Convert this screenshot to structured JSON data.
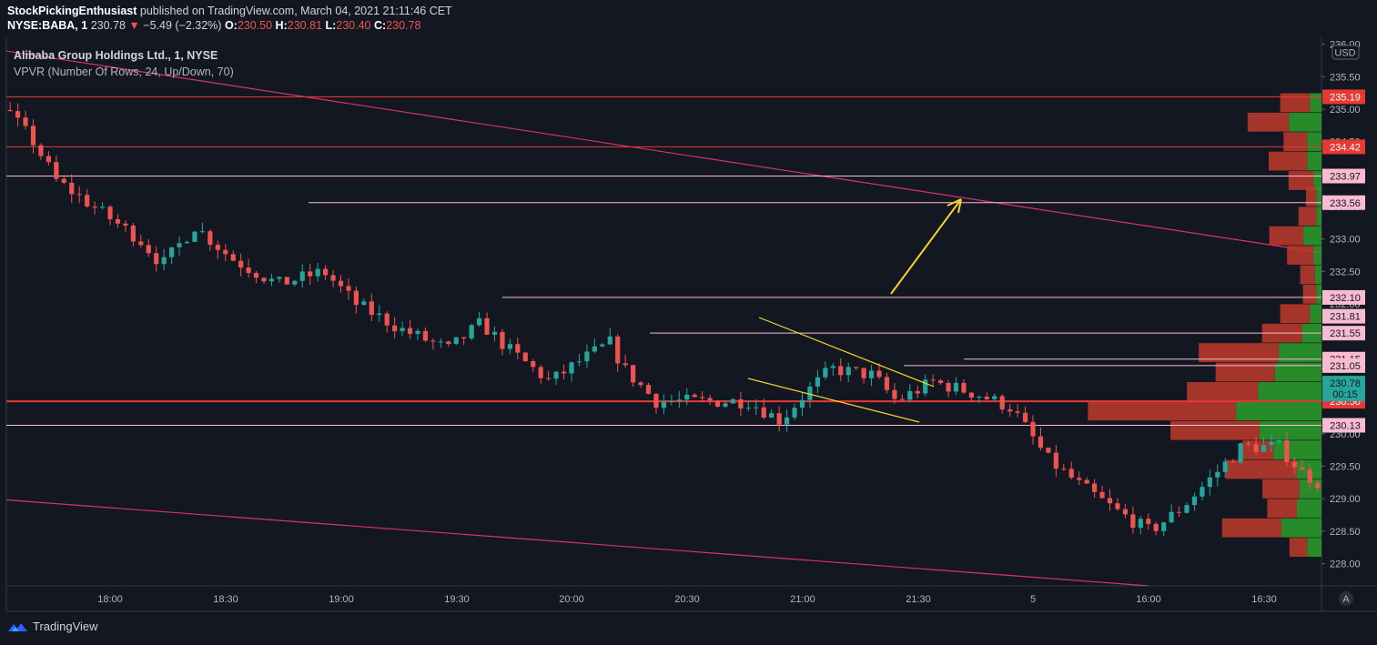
{
  "header": {
    "publisher": "StockPickingEnthusiast",
    "published_text": "published on TradingView.com, March 04, 2021 21:11:46 CET"
  },
  "quote": {
    "symbol": "NYSE:BABA, 1",
    "last": "230.78",
    "change": "−5.49 (−2.32%)",
    "open_label": "O:",
    "open": "230.50",
    "high_label": "H:",
    "high": "230.81",
    "low_label": "L:",
    "low": "230.40",
    "close_label": "C:",
    "close": "230.78"
  },
  "legend": {
    "title": "Alibaba Group Holdings Ltd., 1, NYSE",
    "indicator": "VPVR (Number Of Rows, 24, Up/Down, 70)"
  },
  "axis": {
    "currency": "USD",
    "scale_button": "A",
    "x_ticks": [
      "18:00",
      "18:30",
      "19:00",
      "19:30",
      "20:00",
      "20:30",
      "21:00",
      "21:30",
      "5",
      "16:00",
      "16:30"
    ],
    "y_ticks": [
      "236.00",
      "235.50",
      "235.00",
      "234.50",
      "234.00",
      "233.50",
      "233.00",
      "232.50",
      "232.00",
      "231.50",
      "231.00",
      "230.50",
      "230.00",
      "229.50",
      "229.00",
      "228.50",
      "228.00"
    ]
  },
  "footer": {
    "brand": "TradingView"
  },
  "colors": {
    "background": "#131722",
    "up": "#26a69a",
    "down": "#ef5350",
    "vp_up": "#2ca02c",
    "vp_down": "#c0392b",
    "hline_red": "#e53935",
    "hline_pink": "#f8bbd0",
    "trend": "#d6336c",
    "arrow": "#f5d327"
  },
  "chart_data": {
    "type": "candlestick",
    "title": "Alibaba Group Holdings Ltd., 1, NYSE",
    "ylim": [
      227.6,
      236.0
    ],
    "y_tick_values": [
      236.0,
      235.5,
      235.0,
      234.5,
      234.0,
      233.5,
      233.0,
      232.5,
      232.0,
      231.5,
      231.0,
      230.5,
      230.0,
      229.5,
      229.0,
      228.5,
      228.0
    ],
    "price_path": [
      [
        17.0,
        234.1
      ],
      [
        17.18,
        235.0
      ],
      [
        17.3,
        235.2
      ],
      [
        17.4,
        234.6
      ],
      [
        17.48,
        234.9
      ],
      [
        17.5,
        234.1
      ],
      [
        17.6,
        234.5
      ],
      [
        17.68,
        234.9
      ],
      [
        17.78,
        235.1
      ],
      [
        17.85,
        234.5
      ],
      [
        17.9,
        233.9
      ],
      [
        18.0,
        233.4
      ],
      [
        18.08,
        233.0
      ],
      [
        18.13,
        232.6
      ],
      [
        18.2,
        233.2
      ],
      [
        18.28,
        232.7
      ],
      [
        18.38,
        232.3
      ],
      [
        18.48,
        232.5
      ],
      [
        18.55,
        232.0
      ],
      [
        18.65,
        231.6
      ],
      [
        18.75,
        231.3
      ],
      [
        18.82,
        231.7
      ],
      [
        18.88,
        231.3
      ],
      [
        18.97,
        230.8
      ],
      [
        19.03,
        231.1
      ],
      [
        19.1,
        231.4
      ],
      [
        19.13,
        231.0
      ],
      [
        19.2,
        230.5
      ],
      [
        19.3,
        230.5
      ],
      [
        19.4,
        230.5
      ],
      [
        19.47,
        230.2
      ],
      [
        19.52,
        230.6
      ],
      [
        19.58,
        231.0
      ],
      [
        19.67,
        230.9
      ],
      [
        19.72,
        230.5
      ],
      [
        19.8,
        230.8
      ],
      [
        19.9,
        230.6
      ],
      [
        19.97,
        230.4
      ],
      [
        20.05,
        229.6
      ],
      [
        20.12,
        229.2
      ],
      [
        20.2,
        228.8
      ],
      [
        20.27,
        228.5
      ],
      [
        20.33,
        228.8
      ],
      [
        20.4,
        229.3
      ],
      [
        20.47,
        229.8
      ],
      [
        20.55,
        229.8
      ],
      [
        20.6,
        229.4
      ],
      [
        20.67,
        229.1
      ],
      [
        20.75,
        229.7
      ],
      [
        20.82,
        230.1
      ],
      [
        20.88,
        230.4
      ],
      [
        20.95,
        230.7
      ],
      [
        21.0,
        230.6
      ],
      [
        21.05,
        230.4
      ],
      [
        21.1,
        230.9
      ],
      [
        21.15,
        230.6
      ],
      [
        21.2,
        231.3
      ],
      [
        21.25,
        231.6
      ],
      [
        21.28,
        231.8
      ],
      [
        21.33,
        231.5
      ],
      [
        21.38,
        231.2
      ],
      [
        21.45,
        231.3
      ],
      [
        21.52,
        231.0
      ],
      [
        21.58,
        230.9
      ],
      [
        21.63,
        231.0
      ],
      [
        21.67,
        230.7
      ],
      [
        21.72,
        230.5
      ],
      [
        21.75,
        230.78
      ]
    ],
    "horizontal_levels": [
      {
        "price": 235.19,
        "label": "235.19",
        "color": "red",
        "from": 17.0
      },
      {
        "price": 234.42,
        "label": "234.42",
        "color": "red",
        "from": 17.0
      },
      {
        "price": 233.97,
        "label": "233.97",
        "color": "pink",
        "from": 17.0
      },
      {
        "price": 233.56,
        "label": "233.56",
        "color": "pink",
        "from": 18.43
      },
      {
        "price": 232.1,
        "label": "232.10",
        "color": "pink",
        "from": 18.85
      },
      {
        "price": 231.81,
        "label": "231.81",
        "color": "pink",
        "from": 21.32
      },
      {
        "price": 231.55,
        "label": "231.55",
        "color": "pink",
        "from": 19.17
      },
      {
        "price": 231.15,
        "label": "231.15",
        "color": "pink",
        "from": 19.85
      },
      {
        "price": 231.05,
        "label": "231.05",
        "color": "pink",
        "from": 19.72
      },
      {
        "price": 230.5,
        "label": "230.50",
        "color": "red",
        "from": 17.0
      },
      {
        "price": 230.13,
        "label": "230.13",
        "color": "pink",
        "from": 17.0
      }
    ],
    "last_price": {
      "price": 230.78,
      "label": "230.78",
      "countdown": "00:15"
    },
    "volume_profile": [
      {
        "price": 235.1,
        "down": 0.2,
        "up": 0.09
      },
      {
        "price": 234.8,
        "down": 0.28,
        "up": 0.25
      },
      {
        "price": 234.5,
        "down": 0.16,
        "up": 0.11
      },
      {
        "price": 234.2,
        "down": 0.26,
        "up": 0.11
      },
      {
        "price": 233.9,
        "down": 0.17,
        "up": 0.06
      },
      {
        "price": 233.65,
        "down": 0.07,
        "up": 0.04
      },
      {
        "price": 233.35,
        "down": 0.12,
        "up": 0.04
      },
      {
        "price": 233.05,
        "down": 0.23,
        "up": 0.14
      },
      {
        "price": 232.75,
        "down": 0.18,
        "up": 0.06
      },
      {
        "price": 232.45,
        "down": 0.1,
        "up": 0.05
      },
      {
        "price": 232.15,
        "down": 0.09,
        "up": 0.04
      },
      {
        "price": 231.85,
        "down": 0.2,
        "up": 0.09
      },
      {
        "price": 231.55,
        "down": 0.27,
        "up": 0.15
      },
      {
        "price": 231.25,
        "down": 0.54,
        "up": 0.33
      },
      {
        "price": 230.95,
        "down": 0.4,
        "up": 0.36
      },
      {
        "price": 230.65,
        "down": 0.48,
        "up": 0.49
      },
      {
        "price": 230.35,
        "down": 1.0,
        "up": 0.66
      },
      {
        "price": 230.05,
        "down": 0.6,
        "up": 0.48
      },
      {
        "price": 229.75,
        "down": 0.21,
        "up": 0.37
      },
      {
        "price": 229.45,
        "down": 0.48,
        "up": 0.19
      },
      {
        "price": 229.15,
        "down": 0.25,
        "up": 0.17
      },
      {
        "price": 228.85,
        "down": 0.2,
        "up": 0.19
      },
      {
        "price": 228.55,
        "down": 0.4,
        "up": 0.31
      },
      {
        "price": 228.25,
        "down": 0.12,
        "up": 0.11
      }
    ]
  }
}
